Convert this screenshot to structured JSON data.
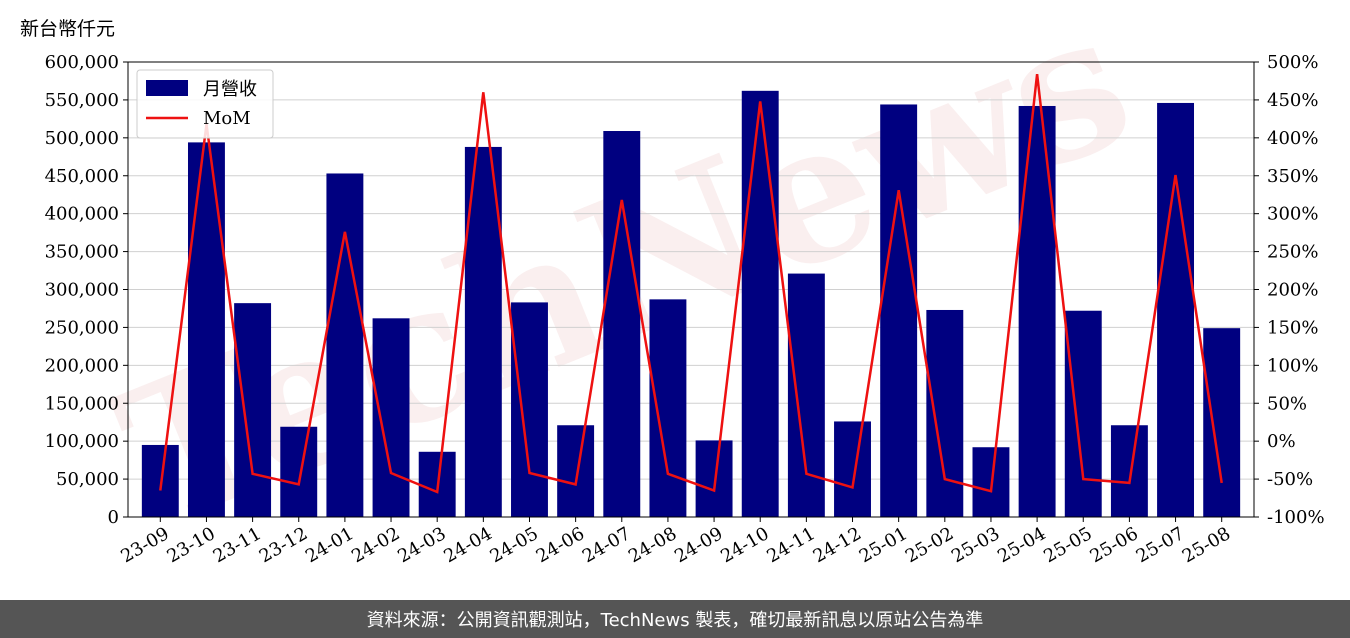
{
  "unit_label": "新台幣仟元",
  "footer": "資料來源：公開資訊觀測站，TechNews 製表，確切最新訊息以原站公告為準",
  "watermark": "TechNews",
  "colors": {
    "bar": "#000080",
    "line": "#ee1111",
    "footer_bg": "#555555"
  },
  "chart_data": {
    "type": "bar",
    "categories": [
      "23-09",
      "23-10",
      "23-11",
      "23-12",
      "24-01",
      "24-02",
      "24-03",
      "24-04",
      "24-05",
      "24-06",
      "24-07",
      "24-08",
      "24-09",
      "24-10",
      "24-11",
      "24-12",
      "25-01",
      "25-02",
      "25-03",
      "25-04",
      "25-05",
      "25-06",
      "25-07",
      "25-08"
    ],
    "series": [
      {
        "name": "月營收",
        "type": "bar",
        "axis": "left",
        "values": [
          95000,
          494000,
          282000,
          119000,
          453000,
          262000,
          86000,
          488000,
          283000,
          121000,
          509000,
          287000,
          101000,
          562000,
          321000,
          126000,
          544000,
          273000,
          92000,
          542000,
          272000,
          121000,
          546000,
          249000
        ]
      },
      {
        "name": "MoM",
        "type": "line",
        "axis": "right",
        "values": [
          -65,
          418,
          -43,
          -57,
          276,
          -42,
          -67,
          460,
          -42,
          -57,
          318,
          -43,
          -65,
          448,
          -43,
          -61,
          331,
          -50,
          -66,
          484,
          -50,
          -55,
          351,
          -55
        ]
      }
    ],
    "ylim_left": [
      0,
      600000
    ],
    "yticks_left": [
      "0",
      "50,000",
      "100,000",
      "150,000",
      "200,000",
      "250,000",
      "300,000",
      "350,000",
      "400,000",
      "450,000",
      "500,000",
      "550,000",
      "600,000"
    ],
    "ylim_right": [
      -100,
      500
    ],
    "yticks_right": [
      "-100%",
      "-50%",
      "0%",
      "50%",
      "100%",
      "150%",
      "200%",
      "250%",
      "300%",
      "350%",
      "400%",
      "450%",
      "500%"
    ],
    "grid": "horizontal",
    "legend": "top-left"
  }
}
